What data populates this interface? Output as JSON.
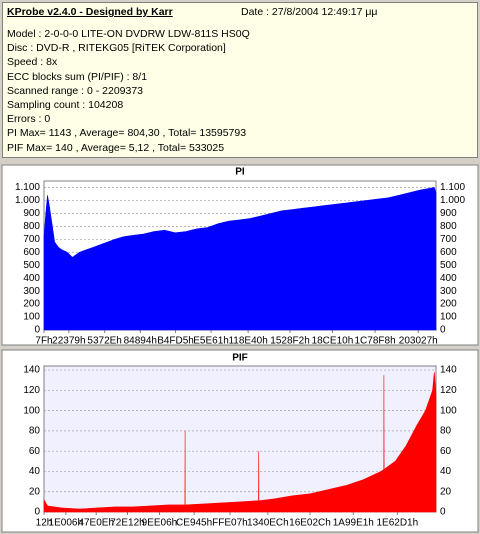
{
  "info": {
    "title": "KProbe v2.4.0 - Designed by Karr",
    "date": "Date : 27/8/2004 12:49:17 μμ",
    "lines": [
      "Model : 2-0-0-0 LITE-ON DVDRW LDW-811S   HS0Q",
      "Disc : DVD-R , RITEKG05 [RiTEK Corporation]",
      "Speed : 8x",
      "ECC blocks sum (PI/PIF) : 8/1",
      "Scanned range : 0 - 2209373",
      "Sampling count : 104208",
      "Errors : 0",
      "PI Max= 1143 , Average= 804,30 , Total= 13595793",
      "PIF Max= 140 , Average= 5,12 , Total= 533025"
    ]
  },
  "chart_data": [
    {
      "type": "area",
      "title": "PI",
      "color": "#0000ff",
      "grid": true,
      "xlim": [
        0,
        2209373
      ],
      "ylim": [
        0,
        1150
      ],
      "yticks": [
        0,
        100,
        200,
        300,
        400,
        500,
        600,
        700,
        800,
        900,
        {
          "value": 1000,
          "label": "1.000"
        },
        {
          "value": 1100,
          "label": "1.100"
        }
      ],
      "xticks": [
        {
          "value": 127,
          "label": "7Fh"
        },
        {
          "value": 140153,
          "label": "22379h"
        },
        {
          "value": 341806,
          "label": "5372Eh"
        },
        {
          "value": 542868,
          "label": "84894h"
        },
        {
          "value": 741333,
          "label": "B4FD5h"
        },
        {
          "value": 941665,
          "label": "E5E61h"
        },
        {
          "value": 1150528,
          "label": "118E40h"
        },
        {
          "value": 1386738,
          "label": "1528F2h"
        },
        {
          "value": 1625616,
          "label": "18CE10h"
        },
        {
          "value": 1865976,
          "label": "1C78F8h"
        },
        {
          "value": 2109479,
          "label": "203027h"
        }
      ],
      "x": [
        0,
        10000,
        20000,
        30000,
        45000,
        60000,
        80000,
        100000,
        130000,
        160000,
        200000,
        240000,
        280000,
        320000,
        360000,
        400000,
        450000,
        500000,
        560000,
        620000,
        680000,
        740000,
        800000,
        860000,
        920000,
        980000,
        1040000,
        1100000,
        1160000,
        1220000,
        1280000,
        1340000,
        1400000,
        1460000,
        1520000,
        1580000,
        1640000,
        1700000,
        1760000,
        1820000,
        1880000,
        1940000,
        2000000,
        2060000,
        2120000,
        2160000,
        2200000,
        2209373
      ],
      "values": [
        720,
        900,
        1040,
        960,
        820,
        680,
        640,
        620,
        600,
        560,
        600,
        620,
        640,
        660,
        680,
        700,
        720,
        730,
        740,
        760,
        770,
        750,
        760,
        780,
        790,
        820,
        840,
        850,
        860,
        880,
        900,
        920,
        930,
        940,
        950,
        960,
        970,
        980,
        990,
        1000,
        1010,
        1020,
        1040,
        1060,
        1080,
        1090,
        1100,
        1060
      ]
    },
    {
      "type": "area",
      "title": "PIF",
      "color": "#ff0000",
      "grid": true,
      "xlim": [
        0,
        2209373
      ],
      "ylim": [
        0,
        144
      ],
      "yticks": [
        0,
        20,
        40,
        60,
        80,
        100,
        120,
        140
      ],
      "xticks": [
        {
          "value": 18,
          "label": "12h"
        },
        {
          "value": 122886,
          "label": "1E006h"
        },
        {
          "value": 294414,
          "label": "47E0Eh"
        },
        {
          "value": 470546,
          "label": "72E12h"
        },
        {
          "value": 650758,
          "label": "9EE06h"
        },
        {
          "value": 846149,
          "label": "CE945h"
        },
        {
          "value": 1048071,
          "label": "FFE07h"
        },
        {
          "value": 1261804,
          "label": "1340ECh"
        },
        {
          "value": 1499180,
          "label": "16E02Ch"
        },
        {
          "value": 1743329,
          "label": "1A99E1h"
        },
        {
          "value": 1991377,
          "label": "1E62D1h"
        }
      ],
      "x": [
        0,
        20000,
        100000,
        200000,
        300000,
        400000,
        500000,
        600000,
        700000,
        794000,
        795000,
        796000,
        900000,
        1000000,
        1100000,
        1200000,
        1209000,
        1210000,
        1211000,
        1300000,
        1400000,
        1500000,
        1600000,
        1700000,
        1800000,
        1900000,
        1915000,
        1916000,
        1917000,
        1980000,
        2040000,
        2100000,
        2150000,
        2190000,
        2200000,
        2209373
      ],
      "values": [
        12,
        6,
        4,
        3,
        4,
        5,
        5,
        6,
        7,
        7,
        80,
        7,
        8,
        9,
        10,
        11,
        11,
        60,
        11,
        13,
        16,
        18,
        22,
        26,
        32,
        40,
        42,
        135,
        42,
        50,
        65,
        85,
        100,
        120,
        138,
        115
      ]
    }
  ]
}
